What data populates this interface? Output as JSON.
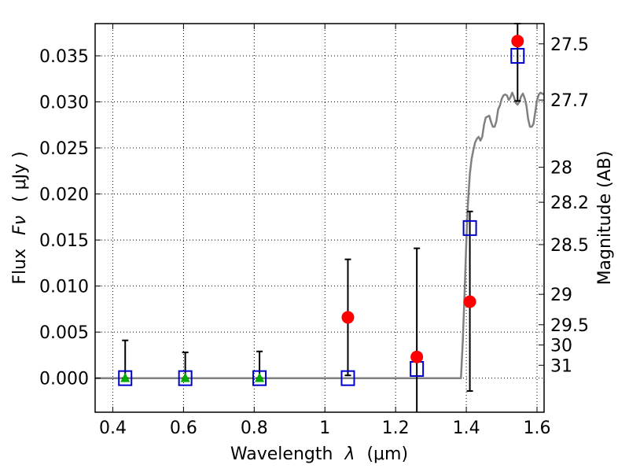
{
  "chart_data": {
    "type": "scatter",
    "xlabel_prefix": "Wavelength",
    "xlabel_symbol": "λ",
    "xlabel_unit": "(μm)",
    "ylabel_prefix": "Flux",
    "ylabel_symbol": "Fν",
    "ylabel_unit": "( μJy )",
    "y2label": "Magnitude (AB)",
    "xlim": [
      0.35,
      1.62
    ],
    "ylim": [
      -0.0037,
      0.0385
    ],
    "grid": true,
    "x_ticks": [
      {
        "value": 0.4,
        "label": "0.4"
      },
      {
        "value": 0.6,
        "label": "0.6"
      },
      {
        "value": 0.8,
        "label": "0.8"
      },
      {
        "value": 1.0,
        "label": "1"
      },
      {
        "value": 1.2,
        "label": "1.2"
      },
      {
        "value": 1.4,
        "label": "1.4"
      },
      {
        "value": 1.6,
        "label": "1.6"
      }
    ],
    "y_ticks": [
      {
        "value": 0.0,
        "label": "0.000"
      },
      {
        "value": 0.005,
        "label": "0.005"
      },
      {
        "value": 0.01,
        "label": "0.010"
      },
      {
        "value": 0.015,
        "label": "0.015"
      },
      {
        "value": 0.02,
        "label": "0.020"
      },
      {
        "value": 0.025,
        "label": "0.025"
      },
      {
        "value": 0.03,
        "label": "0.030"
      },
      {
        "value": 0.035,
        "label": "0.035"
      }
    ],
    "y2_ticks": [
      {
        "label": "27.5",
        "flux": 0.0363
      },
      {
        "label": "27.7",
        "flux": 0.0302
      },
      {
        "label": "28",
        "flux": 0.0229
      },
      {
        "label": "28.2",
        "flux": 0.0191
      },
      {
        "label": "28.5",
        "flux": 0.0145
      },
      {
        "label": "29",
        "flux": 0.0091
      },
      {
        "label": "29.5",
        "flux": 0.0058
      },
      {
        "label": "30",
        "flux": 0.0036
      },
      {
        "label": "31",
        "flux": 0.0014
      }
    ],
    "series": [
      {
        "marker": "circle",
        "color": "#ff0000",
        "points": [
          {
            "x": 1.065,
            "y": 0.0066
          },
          {
            "x": 1.26,
            "y": 0.0023
          },
          {
            "x": 1.41,
            "y": 0.0083
          },
          {
            "x": 1.545,
            "y": 0.0366
          }
        ]
      },
      {
        "marker": "square",
        "color": "#0000cc",
        "points": [
          {
            "x": 0.435,
            "y": 0.0
          },
          {
            "x": 0.605,
            "y": 0.0
          },
          {
            "x": 0.815,
            "y": 0.0
          },
          {
            "x": 1.065,
            "y": 0.0
          },
          {
            "x": 1.26,
            "y": 0.001
          },
          {
            "x": 1.41,
            "y": 0.0163
          },
          {
            "x": 1.545,
            "y": 0.035
          }
        ]
      },
      {
        "marker": "triangle",
        "color": "#00aa00",
        "points": [
          {
            "x": 0.435,
            "y": 0.0
          },
          {
            "x": 0.605,
            "y": 0.0
          },
          {
            "x": 0.815,
            "y": 0.0
          }
        ]
      }
    ],
    "error_bars": [
      {
        "x": 0.435,
        "low": 0.0,
        "high": 0.0041
      },
      {
        "x": 0.605,
        "low": 0.0,
        "high": 0.0028
      },
      {
        "x": 0.815,
        "low": 0.0,
        "high": 0.0029
      },
      {
        "x": 1.065,
        "low": 0.0003,
        "high": 0.0129
      },
      {
        "x": 1.26,
        "low": -0.004,
        "high": 0.0141
      },
      {
        "x": 1.41,
        "low": -0.0014,
        "high": 0.0181
      },
      {
        "x": 1.545,
        "low": 0.0301,
        "high": 0.0385
      }
    ],
    "model_curve": {
      "color": "#808080",
      "points": [
        [
          0.35,
          0.0
        ],
        [
          1.385,
          0.0
        ],
        [
          1.39,
          0.004
        ],
        [
          1.395,
          0.009
        ],
        [
          1.4,
          0.0148
        ],
        [
          1.405,
          0.0192
        ],
        [
          1.41,
          0.0222
        ],
        [
          1.415,
          0.0238
        ],
        [
          1.42,
          0.0248
        ],
        [
          1.425,
          0.0256
        ],
        [
          1.43,
          0.026
        ],
        [
          1.435,
          0.0262
        ],
        [
          1.44,
          0.0258
        ],
        [
          1.445,
          0.0262
        ],
        [
          1.45,
          0.0275
        ],
        [
          1.455,
          0.0283
        ],
        [
          1.46,
          0.0284
        ],
        [
          1.465,
          0.0285
        ],
        [
          1.47,
          0.0278
        ],
        [
          1.475,
          0.0273
        ],
        [
          1.48,
          0.0273
        ],
        [
          1.485,
          0.0279
        ],
        [
          1.49,
          0.0292
        ],
        [
          1.495,
          0.0296
        ],
        [
          1.5,
          0.0303
        ],
        [
          1.505,
          0.0307
        ],
        [
          1.51,
          0.0308
        ],
        [
          1.515,
          0.0307
        ],
        [
          1.52,
          0.0302
        ],
        [
          1.525,
          0.0305
        ],
        [
          1.53,
          0.031
        ],
        [
          1.535,
          0.0305
        ],
        [
          1.54,
          0.0299
        ],
        [
          1.545,
          0.0297
        ],
        [
          1.55,
          0.03
        ],
        [
          1.555,
          0.0306
        ],
        [
          1.56,
          0.0309
        ],
        [
          1.565,
          0.0304
        ],
        [
          1.57,
          0.0296
        ],
        [
          1.575,
          0.0281
        ],
        [
          1.58,
          0.0273
        ],
        [
          1.585,
          0.0273
        ],
        [
          1.59,
          0.0276
        ],
        [
          1.595,
          0.0289
        ],
        [
          1.6,
          0.0302
        ],
        [
          1.605,
          0.0308
        ],
        [
          1.61,
          0.031
        ],
        [
          1.615,
          0.0309
        ],
        [
          1.62,
          0.0308
        ]
      ]
    }
  }
}
